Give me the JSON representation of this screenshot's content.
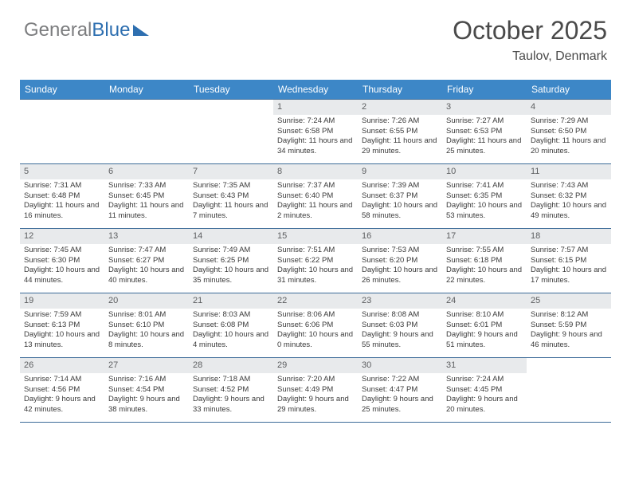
{
  "logo": {
    "part1": "General",
    "part2": "Blue"
  },
  "title": "October 2025",
  "location": "Taulov, Denmark",
  "accent_color": "#3d87c7",
  "border_color": "#3d6c99",
  "num_bg": "#e8eaec",
  "days": [
    "Sunday",
    "Monday",
    "Tuesday",
    "Wednesday",
    "Thursday",
    "Friday",
    "Saturday"
  ],
  "weeks": [
    [
      {
        "n": "",
        "lines": []
      },
      {
        "n": "",
        "lines": []
      },
      {
        "n": "",
        "lines": []
      },
      {
        "n": "1",
        "lines": [
          "Sunrise: 7:24 AM",
          "Sunset: 6:58 PM",
          "Daylight: 11 hours and 34 minutes."
        ]
      },
      {
        "n": "2",
        "lines": [
          "Sunrise: 7:26 AM",
          "Sunset: 6:55 PM",
          "Daylight: 11 hours and 29 minutes."
        ]
      },
      {
        "n": "3",
        "lines": [
          "Sunrise: 7:27 AM",
          "Sunset: 6:53 PM",
          "Daylight: 11 hours and 25 minutes."
        ]
      },
      {
        "n": "4",
        "lines": [
          "Sunrise: 7:29 AM",
          "Sunset: 6:50 PM",
          "Daylight: 11 hours and 20 minutes."
        ]
      }
    ],
    [
      {
        "n": "5",
        "lines": [
          "Sunrise: 7:31 AM",
          "Sunset: 6:48 PM",
          "Daylight: 11 hours and 16 minutes."
        ]
      },
      {
        "n": "6",
        "lines": [
          "Sunrise: 7:33 AM",
          "Sunset: 6:45 PM",
          "Daylight: 11 hours and 11 minutes."
        ]
      },
      {
        "n": "7",
        "lines": [
          "Sunrise: 7:35 AM",
          "Sunset: 6:43 PM",
          "Daylight: 11 hours and 7 minutes."
        ]
      },
      {
        "n": "8",
        "lines": [
          "Sunrise: 7:37 AM",
          "Sunset: 6:40 PM",
          "Daylight: 11 hours and 2 minutes."
        ]
      },
      {
        "n": "9",
        "lines": [
          "Sunrise: 7:39 AM",
          "Sunset: 6:37 PM",
          "Daylight: 10 hours and 58 minutes."
        ]
      },
      {
        "n": "10",
        "lines": [
          "Sunrise: 7:41 AM",
          "Sunset: 6:35 PM",
          "Daylight: 10 hours and 53 minutes."
        ]
      },
      {
        "n": "11",
        "lines": [
          "Sunrise: 7:43 AM",
          "Sunset: 6:32 PM",
          "Daylight: 10 hours and 49 minutes."
        ]
      }
    ],
    [
      {
        "n": "12",
        "lines": [
          "Sunrise: 7:45 AM",
          "Sunset: 6:30 PM",
          "Daylight: 10 hours and 44 minutes."
        ]
      },
      {
        "n": "13",
        "lines": [
          "Sunrise: 7:47 AM",
          "Sunset: 6:27 PM",
          "Daylight: 10 hours and 40 minutes."
        ]
      },
      {
        "n": "14",
        "lines": [
          "Sunrise: 7:49 AM",
          "Sunset: 6:25 PM",
          "Daylight: 10 hours and 35 minutes."
        ]
      },
      {
        "n": "15",
        "lines": [
          "Sunrise: 7:51 AM",
          "Sunset: 6:22 PM",
          "Daylight: 10 hours and 31 minutes."
        ]
      },
      {
        "n": "16",
        "lines": [
          "Sunrise: 7:53 AM",
          "Sunset: 6:20 PM",
          "Daylight: 10 hours and 26 minutes."
        ]
      },
      {
        "n": "17",
        "lines": [
          "Sunrise: 7:55 AM",
          "Sunset: 6:18 PM",
          "Daylight: 10 hours and 22 minutes."
        ]
      },
      {
        "n": "18",
        "lines": [
          "Sunrise: 7:57 AM",
          "Sunset: 6:15 PM",
          "Daylight: 10 hours and 17 minutes."
        ]
      }
    ],
    [
      {
        "n": "19",
        "lines": [
          "Sunrise: 7:59 AM",
          "Sunset: 6:13 PM",
          "Daylight: 10 hours and 13 minutes."
        ]
      },
      {
        "n": "20",
        "lines": [
          "Sunrise: 8:01 AM",
          "Sunset: 6:10 PM",
          "Daylight: 10 hours and 8 minutes."
        ]
      },
      {
        "n": "21",
        "lines": [
          "Sunrise: 8:03 AM",
          "Sunset: 6:08 PM",
          "Daylight: 10 hours and 4 minutes."
        ]
      },
      {
        "n": "22",
        "lines": [
          "Sunrise: 8:06 AM",
          "Sunset: 6:06 PM",
          "Daylight: 10 hours and 0 minutes."
        ]
      },
      {
        "n": "23",
        "lines": [
          "Sunrise: 8:08 AM",
          "Sunset: 6:03 PM",
          "Daylight: 9 hours and 55 minutes."
        ]
      },
      {
        "n": "24",
        "lines": [
          "Sunrise: 8:10 AM",
          "Sunset: 6:01 PM",
          "Daylight: 9 hours and 51 minutes."
        ]
      },
      {
        "n": "25",
        "lines": [
          "Sunrise: 8:12 AM",
          "Sunset: 5:59 PM",
          "Daylight: 9 hours and 46 minutes."
        ]
      }
    ],
    [
      {
        "n": "26",
        "lines": [
          "Sunrise: 7:14 AM",
          "Sunset: 4:56 PM",
          "Daylight: 9 hours and 42 minutes."
        ]
      },
      {
        "n": "27",
        "lines": [
          "Sunrise: 7:16 AM",
          "Sunset: 4:54 PM",
          "Daylight: 9 hours and 38 minutes."
        ]
      },
      {
        "n": "28",
        "lines": [
          "Sunrise: 7:18 AM",
          "Sunset: 4:52 PM",
          "Daylight: 9 hours and 33 minutes."
        ]
      },
      {
        "n": "29",
        "lines": [
          "Sunrise: 7:20 AM",
          "Sunset: 4:49 PM",
          "Daylight: 9 hours and 29 minutes."
        ]
      },
      {
        "n": "30",
        "lines": [
          "Sunrise: 7:22 AM",
          "Sunset: 4:47 PM",
          "Daylight: 9 hours and 25 minutes."
        ]
      },
      {
        "n": "31",
        "lines": [
          "Sunrise: 7:24 AM",
          "Sunset: 4:45 PM",
          "Daylight: 9 hours and 20 minutes."
        ]
      },
      {
        "n": "",
        "lines": []
      }
    ]
  ]
}
